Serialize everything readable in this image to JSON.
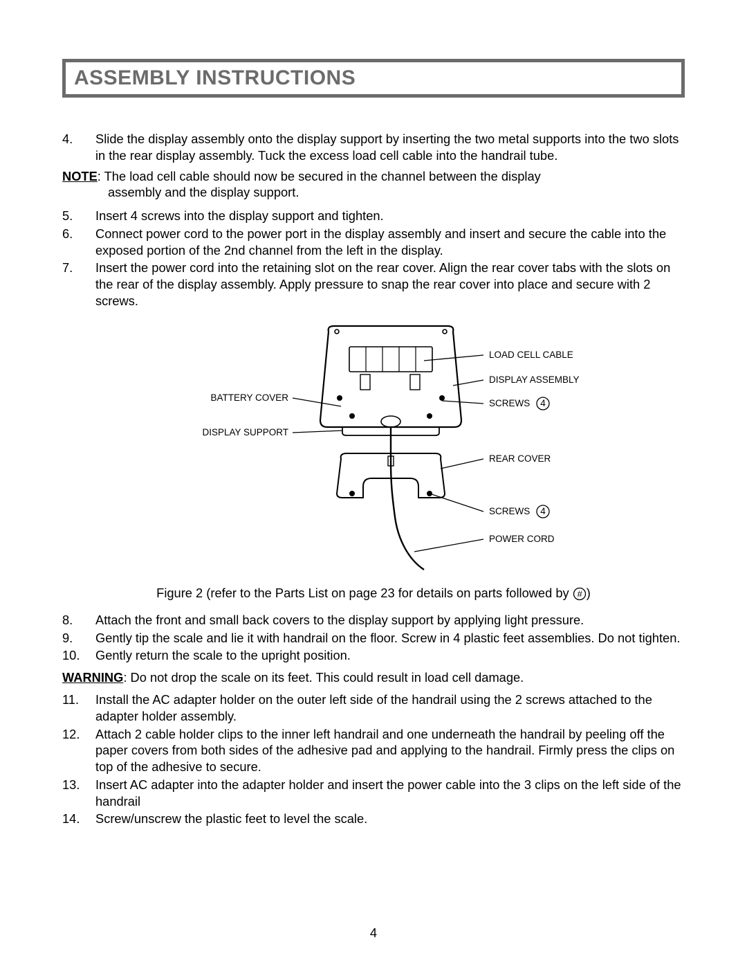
{
  "header": {
    "title": "ASSEMBLY INSTRUCTIONS"
  },
  "steps_a": [
    {
      "num": "4.",
      "text": "Slide the display assembly onto the display support by inserting the two metal supports into the two slots in the rear display assembly. Tuck the excess load cell cable into the handrail tube."
    }
  ],
  "note": {
    "label": "NOTE",
    "text": ": The load cell cable should now be secured in the channel between the display",
    "text2": "assembly and the display support."
  },
  "steps_b": [
    {
      "num": "5.",
      "text": "Insert 4 screws into the display support and tighten."
    },
    {
      "num": "6.",
      "text": "Connect power cord to the power port in the display assembly and insert and secure the cable into the exposed portion of the 2nd channel from the left in the display."
    },
    {
      "num": "7.",
      "text": "Insert the power cord into the retaining slot on the rear cover. Align the rear cover tabs with the slots on the rear of the display assembly. Apply pressure to snap the rear cover into place and secure with 2 screws."
    }
  ],
  "diagram": {
    "labels": {
      "battery_cover": "BATTERY COVER",
      "display_support": "DISPLAY SUPPORT",
      "load_cell_cable": "LOAD CELL CABLE",
      "display_assembly": "DISPLAY ASSEMBLY",
      "screws_top": "SCREWS",
      "screws_top_qty": "4",
      "rear_cover": "REAR COVER",
      "screws_bot": "SCREWS",
      "screws_bot_qty": "4",
      "power_cord": "POWER CORD"
    },
    "caption_pre": "Figure 2 (refer to the Parts List on page 23 for details on parts followed by ",
    "caption_sym": "#",
    "caption_post": ")"
  },
  "steps_c": [
    {
      "num": "8.",
      "text": "Attach the front and small back covers to the display support by applying light pressure."
    },
    {
      "num": "9.",
      "text": "Gently tip the scale and lie it with handrail on the floor. Screw in 4 plastic feet assemblies. Do not tighten."
    },
    {
      "num": "10.",
      "text": "Gently return the scale to the upright position."
    }
  ],
  "warning": {
    "label": "WARNING",
    "text": ":  Do not drop the scale on its feet. This could result in load cell damage."
  },
  "steps_d": [
    {
      "num": "11.",
      "text": "Install the AC adapter holder on the outer left side of the handrail using the 2 screws attached to the adapter holder assembly."
    },
    {
      "num": "12.",
      "text": "Attach 2 cable holder clips to the inner left handrail and one underneath the handrail by peeling off the paper covers from both sides of the adhesive pad and applying to the handrail. Firmly press the clips on top of the adhesive to secure."
    },
    {
      "num": "13.",
      "text": "Insert AC adapter into the adapter holder and insert the power cable into the 3 clips on the left side of the handrail"
    },
    {
      "num": "14.",
      "text": "Screw/unscrew the plastic feet to level the scale."
    }
  ],
  "page_number": "4"
}
